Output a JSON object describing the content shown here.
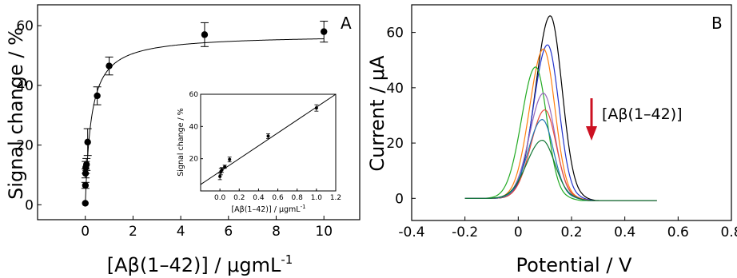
{
  "figure": {
    "panels": [
      {
        "label": "A"
      },
      {
        "label": "B"
      }
    ]
  },
  "chart_data": [
    {
      "panel": "A",
      "type": "scatter",
      "xlabel": "[Aβ(1–42)] / μgmL",
      "xlabel_sup": "-1",
      "ylabel": "Signal change / %",
      "xlim": [
        -2,
        11.5
      ],
      "ylim": [
        -5,
        67
      ],
      "xticks": [
        0,
        2,
        4,
        6,
        8,
        10
      ],
      "yticks": [
        0,
        20,
        40,
        60
      ],
      "points": [
        {
          "x": 0.001,
          "y": 0.5,
          "err": 0
        },
        {
          "x": 0.005,
          "y": 6.5,
          "err": 1
        },
        {
          "x": 0.01,
          "y": 10.5,
          "err": 1.5
        },
        {
          "x": 0.02,
          "y": 12.5,
          "err": 2
        },
        {
          "x": 0.05,
          "y": 13.5,
          "err": 2
        },
        {
          "x": 0.1,
          "y": 21,
          "err": 4.5
        },
        {
          "x": 0.5,
          "y": 36.5,
          "err": 3
        },
        {
          "x": 1,
          "y": 46.5,
          "err": 3
        },
        {
          "x": 5,
          "y": 57,
          "err": 4
        },
        {
          "x": 10,
          "y": 58,
          "err": 3.5
        }
      ],
      "fit": {
        "model": "langmuir",
        "max": 57,
        "k": 0.25
      },
      "grid": false,
      "inset": {
        "type": "scatter",
        "xlabel": "[Aβ(1–42)] / μgmL",
        "xlabel_sup": "-1",
        "ylabel": "Signal change / %",
        "xlim": [
          -0.2,
          1.2
        ],
        "ylim": [
          0,
          60
        ],
        "xticks": [
          0.0,
          0.2,
          0.4,
          0.6,
          0.8,
          1.0,
          1.2
        ],
        "xtick_labels": [
          "0.0",
          "0.2",
          "0.4",
          "0.6",
          "0.8",
          "1.0",
          "1.2"
        ],
        "yticks": [
          20,
          40,
          60
        ],
        "points": [
          {
            "x": 0.0,
            "y": 9,
            "err": 2
          },
          {
            "x": 0.01,
            "y": 12,
            "err": 2
          },
          {
            "x": 0.02,
            "y": 13,
            "err": 1.5
          },
          {
            "x": 0.05,
            "y": 15,
            "err": 1
          },
          {
            "x": 0.1,
            "y": 19.5,
            "err": 1.5
          },
          {
            "x": 0.5,
            "y": 34,
            "err": 1.5
          },
          {
            "x": 1.0,
            "y": 51.5,
            "err": 2
          }
        ],
        "fit_line": {
          "x": [
            -0.2,
            1.2
          ],
          "y": [
            4,
            60
          ]
        }
      }
    },
    {
      "panel": "B",
      "type": "line",
      "xlabel": "Potential / V",
      "ylabel": "Current / μA",
      "xlim": [
        -0.4,
        0.8
      ],
      "ylim": [
        -8,
        70
      ],
      "xticks": [
        -0.4,
        -0.2,
        0.0,
        0.2,
        0.4,
        0.6,
        0.8
      ],
      "xtick_labels": [
        "-0.4",
        "-0.2",
        "0",
        "0.2",
        "0.4",
        "0.6",
        "0.8"
      ],
      "yticks": [
        0,
        20,
        40,
        60
      ],
      "x_range": [
        -0.2,
        0.52
      ],
      "series": [
        {
          "color": "#000000",
          "peak_x": 0.12,
          "height": 66,
          "sigma": 0.052,
          "onset": -0.1
        },
        {
          "color": "#2233cc",
          "peak_x": 0.11,
          "height": 55.5,
          "sigma": 0.05,
          "onset": -0.1
        },
        {
          "color": "#ff7f0e",
          "peak_x": 0.095,
          "height": 54,
          "sigma": 0.05,
          "onset": -0.1
        },
        {
          "color": "#22aa22",
          "peak_x": 0.065,
          "height": 47.5,
          "sigma": 0.05,
          "onset": -0.12
        },
        {
          "color": "#9467bd",
          "peak_x": 0.095,
          "height": 38,
          "sigma": 0.05,
          "onset": -0.1
        },
        {
          "color": "#e74c3c",
          "peak_x": 0.1,
          "height": 32,
          "sigma": 0.05,
          "onset": -0.1
        },
        {
          "color": "#1f77b4",
          "peak_x": 0.09,
          "height": 28.5,
          "sigma": 0.05,
          "onset": -0.1
        },
        {
          "color": "#117733",
          "peak_x": 0.09,
          "height": 21,
          "sigma": 0.055,
          "onset": -0.1
        }
      ],
      "annotation": {
        "text": "[Aβ(1–42)]",
        "arrow_color": "#cc1122"
      },
      "grid": false
    }
  ]
}
